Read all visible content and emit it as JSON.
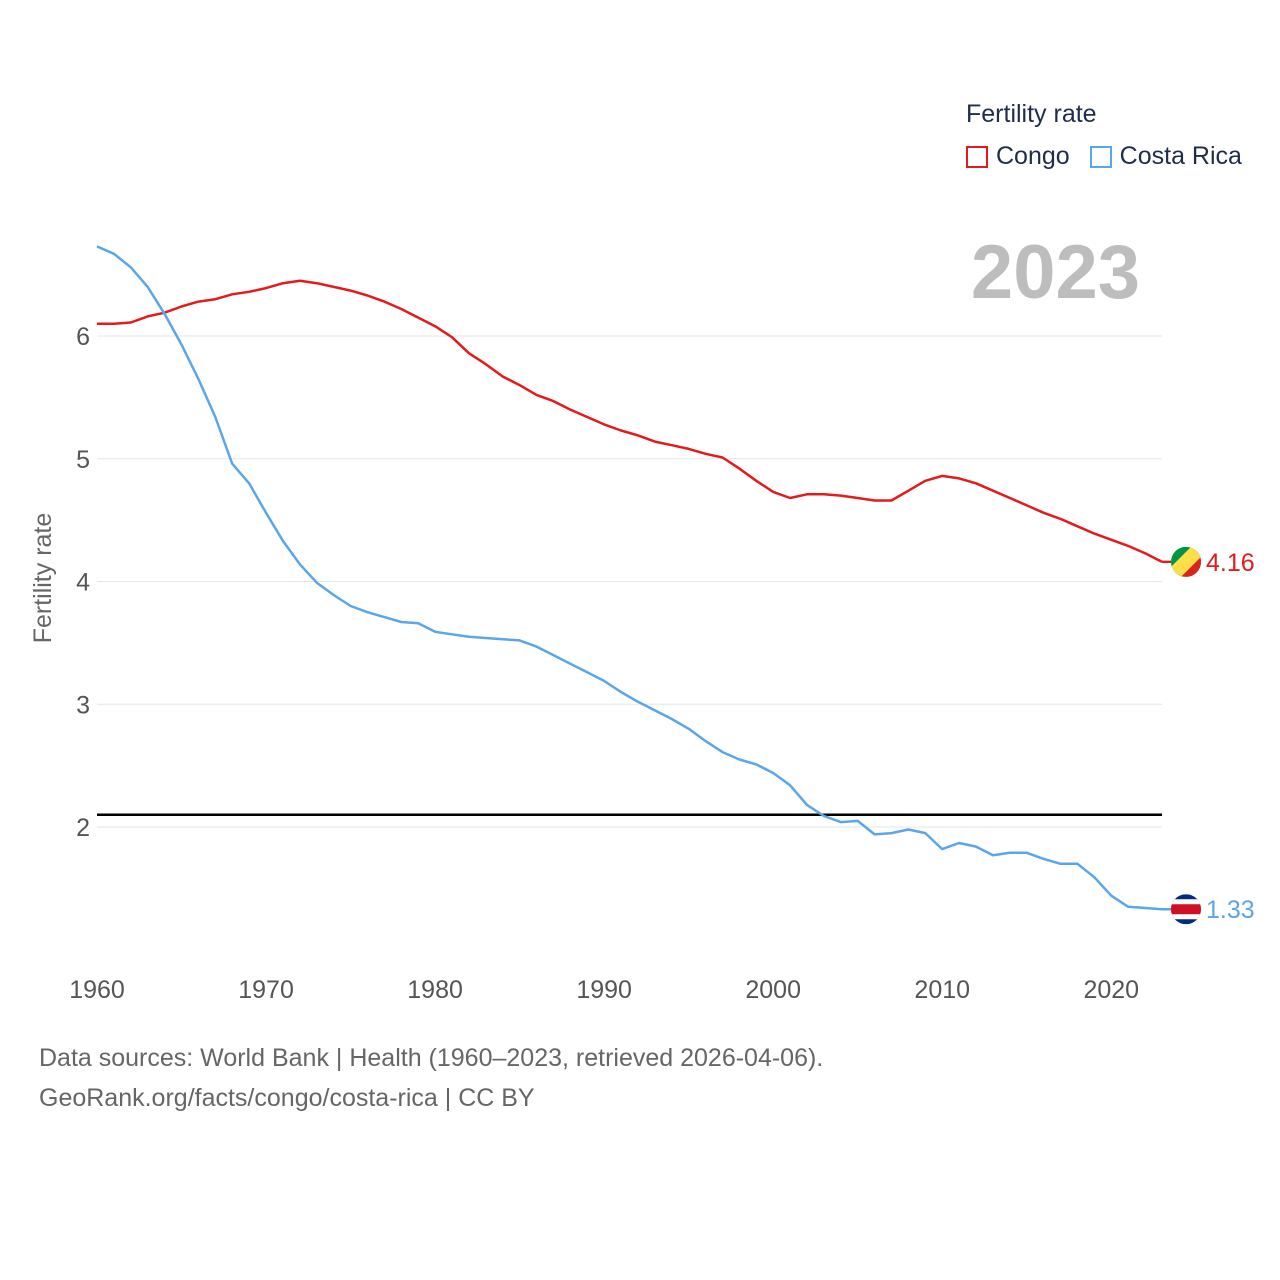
{
  "legend": {
    "title": "Fertility rate",
    "items": [
      {
        "name": "Congo",
        "color": "#e41a1c"
      },
      {
        "name": "Costa Rica",
        "color": "#5aa6e8"
      }
    ]
  },
  "year_label": "2023",
  "footer": {
    "line1": "Data sources: World Bank | Health (1960–2023, retrieved 2026-04-06).",
    "line2": "GeoRank.org/facts/congo/costa-rica | CC BY"
  },
  "chart_data": {
    "type": "line",
    "title": "",
    "xlabel": "",
    "ylabel": "Fertility rate",
    "xlim": [
      1960,
      2023
    ],
    "ylim": [
      1,
      7
    ],
    "x_ticks": [
      1960,
      1970,
      1980,
      1990,
      2000,
      2010,
      2020
    ],
    "y_ticks": [
      2,
      3,
      4,
      5,
      6
    ],
    "grid": true,
    "reference_line": {
      "y": 2.1,
      "color": "#000000"
    },
    "x": [
      1960,
      1961,
      1962,
      1963,
      1964,
      1965,
      1966,
      1967,
      1968,
      1969,
      1970,
      1971,
      1972,
      1973,
      1974,
      1975,
      1976,
      1977,
      1978,
      1979,
      1980,
      1981,
      1982,
      1983,
      1984,
      1985,
      1986,
      1987,
      1988,
      1989,
      1990,
      1991,
      1992,
      1993,
      1994,
      1995,
      1996,
      1997,
      1998,
      1999,
      2000,
      2001,
      2002,
      2003,
      2004,
      2005,
      2006,
      2007,
      2008,
      2009,
      2010,
      2011,
      2012,
      2013,
      2014,
      2015,
      2016,
      2017,
      2018,
      2019,
      2020,
      2021,
      2022,
      2023
    ],
    "series": [
      {
        "name": "Congo",
        "color": "#e41a1c",
        "end_label": "4.16",
        "values": [
          6.1,
          6.1,
          6.11,
          6.16,
          6.19,
          6.24,
          6.28,
          6.3,
          6.34,
          6.36,
          6.39,
          6.43,
          6.45,
          6.43,
          6.4,
          6.37,
          6.33,
          6.28,
          6.22,
          6.15,
          6.08,
          5.99,
          5.86,
          5.77,
          5.67,
          5.6,
          5.52,
          5.47,
          5.4,
          5.34,
          5.28,
          5.23,
          5.19,
          5.14,
          5.11,
          5.08,
          5.04,
          5.01,
          4.92,
          4.82,
          4.73,
          4.68,
          4.71,
          4.71,
          4.7,
          4.68,
          4.66,
          4.66,
          4.74,
          4.82,
          4.86,
          4.84,
          4.8,
          4.74,
          4.68,
          4.62,
          4.56,
          4.51,
          4.45,
          4.39,
          4.34,
          4.29,
          4.23,
          4.16
        ]
      },
      {
        "name": "Costa Rica",
        "color": "#5aa6e8",
        "end_label": "1.33",
        "values": [
          6.73,
          6.67,
          6.56,
          6.4,
          6.18,
          5.93,
          5.65,
          5.34,
          4.96,
          4.8,
          4.56,
          4.33,
          4.14,
          3.99,
          3.89,
          3.8,
          3.75,
          3.71,
          3.67,
          3.66,
          3.59,
          3.57,
          3.55,
          3.54,
          3.53,
          3.52,
          3.47,
          3.4,
          3.33,
          3.26,
          3.19,
          3.1,
          3.02,
          2.95,
          2.88,
          2.8,
          2.7,
          2.61,
          2.55,
          2.51,
          2.44,
          2.34,
          2.18,
          2.09,
          2.04,
          2.05,
          1.94,
          1.95,
          1.98,
          1.95,
          1.82,
          1.87,
          1.84,
          1.77,
          1.79,
          1.79,
          1.74,
          1.7,
          1.7,
          1.59,
          1.44,
          1.35,
          1.34,
          1.33
        ]
      }
    ]
  }
}
